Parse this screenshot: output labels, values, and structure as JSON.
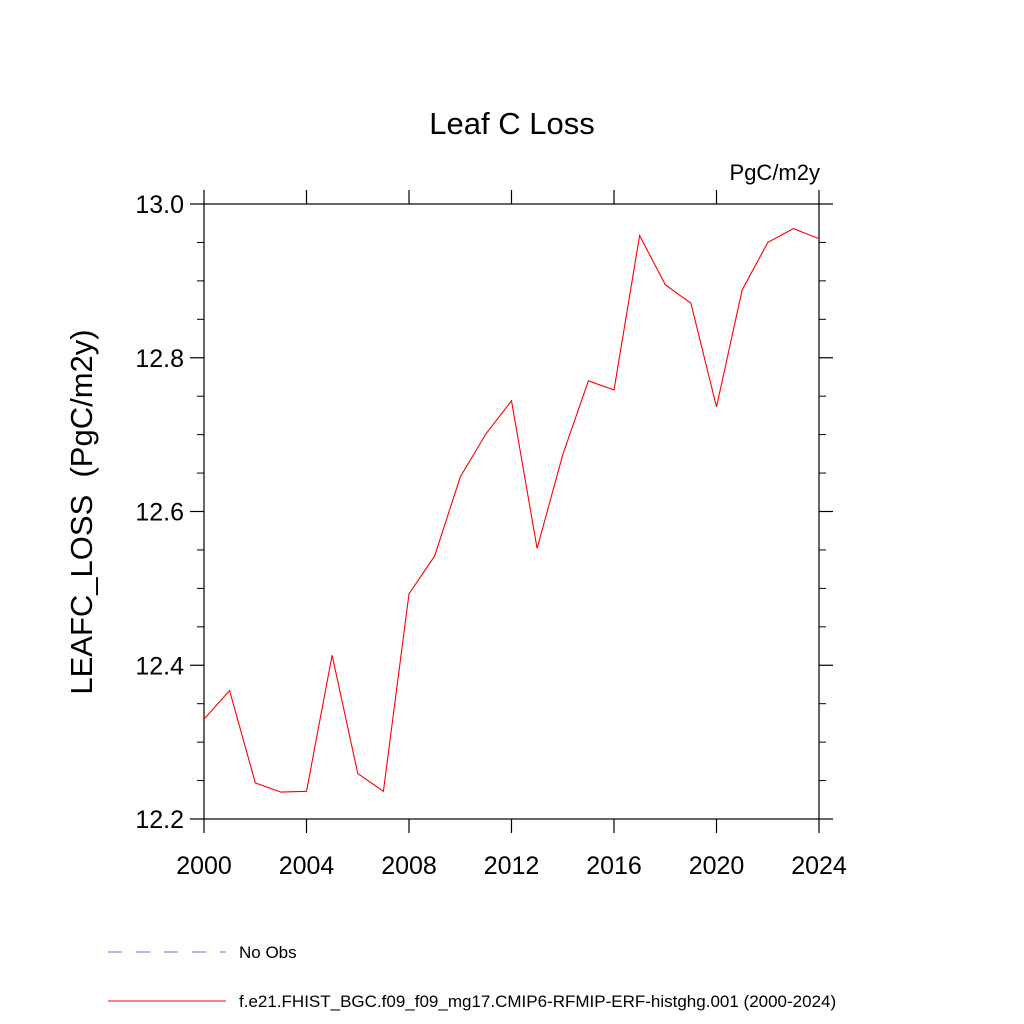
{
  "chart_data": {
    "type": "line",
    "title": "Leaf C Loss",
    "units_label": "PgC/m2y",
    "ylabel": "LEAFC_LOSS  (PgC/m2y)",
    "xlabel": "",
    "xlim": [
      2000,
      2024
    ],
    "ylim": [
      12.2,
      13.0
    ],
    "xticks": [
      2000,
      2004,
      2008,
      2012,
      2016,
      2020,
      2024
    ],
    "xtick_labels": [
      "2000",
      "2004",
      "2008",
      "2012",
      "2016",
      "2020",
      "2024"
    ],
    "yticks": [
      12.2,
      12.4,
      12.6,
      12.8,
      13.0
    ],
    "ytick_labels": [
      "12.2",
      "12.4",
      "12.6",
      "12.8",
      "13.0"
    ],
    "y_minor_step": 0.05,
    "x_minor_step": 1,
    "series": [
      {
        "name": "f.e21.FHIST_BGC.f09_f09_mg17.CMIP6-RFMIP-ERF-histghg.001 (2000-2024)",
        "color": "#ff0000",
        "x": [
          2000,
          2001,
          2002,
          2003,
          2004,
          2005,
          2006,
          2007,
          2008,
          2009,
          2010,
          2011,
          2012,
          2013,
          2014,
          2015,
          2016,
          2017,
          2018,
          2019,
          2020,
          2021,
          2022,
          2023,
          2024
        ],
        "values": [
          12.33,
          12.367,
          12.247,
          12.235,
          12.236,
          12.413,
          12.259,
          12.236,
          12.493,
          12.542,
          12.645,
          12.701,
          12.744,
          12.552,
          12.674,
          12.77,
          12.758,
          12.959,
          12.895,
          12.871,
          12.736,
          12.888,
          12.95,
          12.968,
          12.955
        ]
      }
    ],
    "legend": [
      {
        "label": "No Obs",
        "color": "#7b68ee",
        "style": "dashed"
      },
      {
        "label": "f.e21.FHIST_BGC.f09_f09_mg17.CMIP6-RFMIP-ERF-histghg.001 (2000-2024)",
        "color": "#ff0000",
        "style": "solid"
      }
    ]
  }
}
